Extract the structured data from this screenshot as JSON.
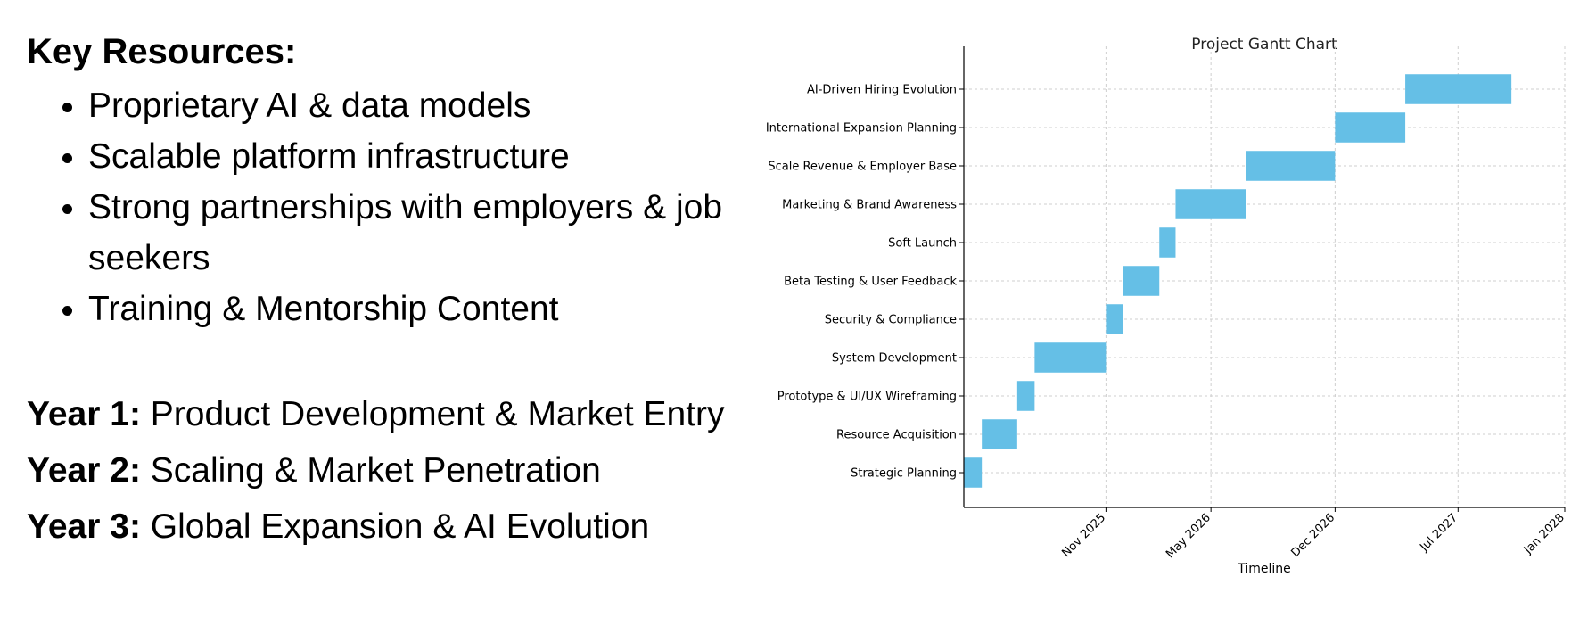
{
  "key_resources": {
    "heading": "Key Resources:",
    "items": [
      "Proprietary AI & data models",
      "Scalable platform infrastructure",
      "Strong partnerships with employers & job seekers",
      "Training & Mentorship Content"
    ]
  },
  "years": [
    {
      "label": "Year 1:",
      "text": "Product Development & Market Entry"
    },
    {
      "label": "Year 2:",
      "text": "Scaling & Market Penetration"
    },
    {
      "label": "Year 3:",
      "text": "Global Expansion & AI Evolution"
    }
  ],
  "chart_data": {
    "type": "gantt",
    "title": "Project Gantt Chart",
    "xlabel": "Timeline",
    "ylabel": "",
    "xlim": [
      "2025-03-01",
      "2028-01-01"
    ],
    "grid": true,
    "bar_color": "#65bfe6",
    "x_ticks": [
      {
        "label": "Nov 2025",
        "date": "2025-11-01"
      },
      {
        "label": "May 2026",
        "date": "2026-05-01"
      },
      {
        "label": "Dec 2026",
        "date": "2026-12-01"
      },
      {
        "label": "Jul 2027",
        "date": "2027-07-01"
      },
      {
        "label": "Jan 2028",
        "date": "2028-01-01"
      }
    ],
    "tasks": [
      {
        "name": "Strategic Planning",
        "start": "2025-03-01",
        "end": "2025-04-01"
      },
      {
        "name": "Resource Acquisition",
        "start": "2025-04-01",
        "end": "2025-06-01"
      },
      {
        "name": "Prototype & UI/UX Wireframing",
        "start": "2025-06-01",
        "end": "2025-07-01"
      },
      {
        "name": "System Development",
        "start": "2025-07-01",
        "end": "2025-11-01"
      },
      {
        "name": "Security & Compliance",
        "start": "2025-11-01",
        "end": "2025-12-01"
      },
      {
        "name": "Beta Testing & User Feedback",
        "start": "2025-12-01",
        "end": "2026-02-01"
      },
      {
        "name": "Soft Launch",
        "start": "2026-02-01",
        "end": "2026-03-01"
      },
      {
        "name": "Marketing & Brand Awareness",
        "start": "2026-03-01",
        "end": "2026-07-01"
      },
      {
        "name": "Scale Revenue & Employer Base",
        "start": "2026-07-01",
        "end": "2026-12-01"
      },
      {
        "name": "International Expansion Planning",
        "start": "2026-12-01",
        "end": "2027-04-01"
      },
      {
        "name": "AI-Driven Hiring Evolution",
        "start": "2027-04-01",
        "end": "2027-10-01"
      }
    ]
  }
}
